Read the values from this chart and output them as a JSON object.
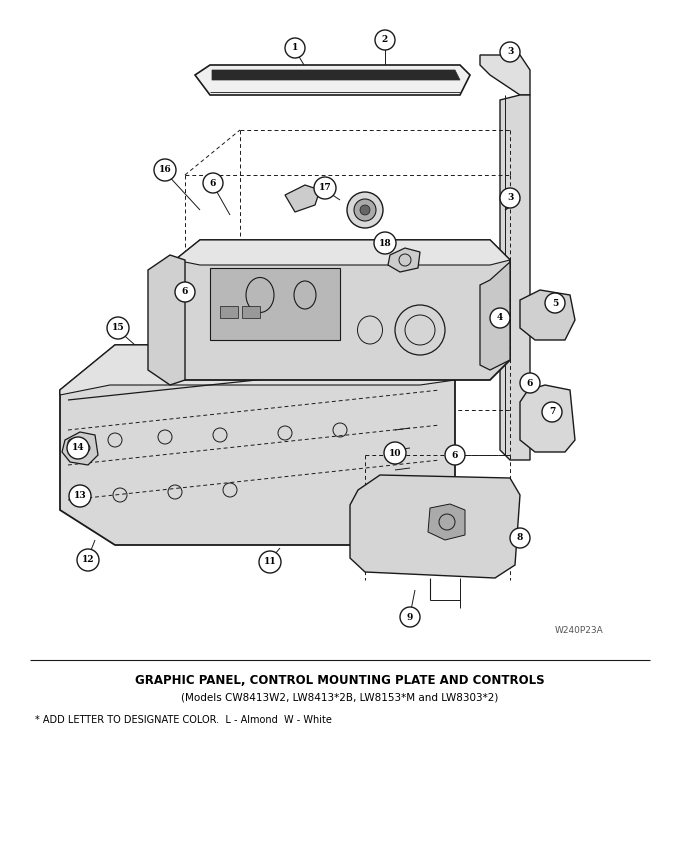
{
  "title": "GRAPHIC PANEL, CONTROL MOUNTING PLATE AND CONTROLS",
  "subtitle": "(Models CW8413W2, LW8413*2B, LW8153*M and LW8303*2)",
  "footnote": "* ADD LETTER TO DESIGNATE COLOR.  L - Almond  W - White",
  "watermark": "W240P23A",
  "bg_color": "#ffffff",
  "line_color": "#1a1a1a",
  "title_fontsize": 8.5,
  "subtitle_fontsize": 7.5,
  "footnote_fontsize": 7.0
}
